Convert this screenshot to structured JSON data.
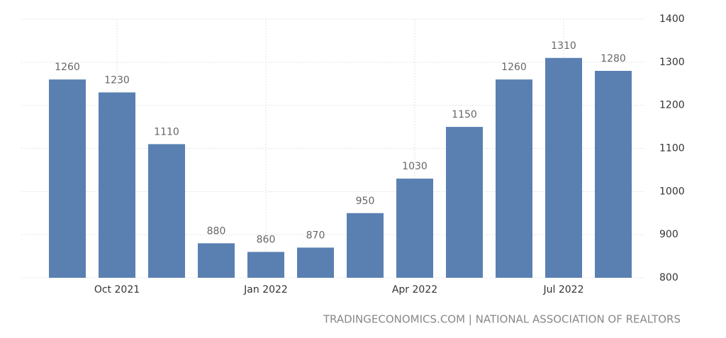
{
  "chart_data": {
    "type": "bar",
    "categories": [
      null,
      "Oct 2021",
      null,
      null,
      "Jan 2022",
      null,
      null,
      "Apr 2022",
      null,
      null,
      "Jul 2022",
      null
    ],
    "values": [
      1260,
      1230,
      1110,
      880,
      860,
      870,
      950,
      1030,
      1150,
      1260,
      1310,
      1280
    ],
    "color": "#5a80b2",
    "ylim": [
      800,
      1400
    ],
    "yticks": [
      800,
      900,
      1000,
      1100,
      1200,
      1300,
      1400
    ],
    "grid": true,
    "source": "TRADINGECONOMICS.COM | NATIONAL ASSOCIATION OF REALTORS"
  }
}
